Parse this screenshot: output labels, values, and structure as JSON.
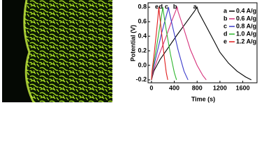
{
  "chart_data": {
    "type": "line",
    "x_label": "Time (s)",
    "y_label": "Potential (V)",
    "xlim": [
      -60,
      1850
    ],
    "ylim": [
      -0.24,
      0.86
    ],
    "xticks": [
      0,
      400,
      800,
      1200,
      1600
    ],
    "yticks": [
      -0.2,
      {
        "value": 0,
        "label": "0.0"
      },
      0.2,
      0.4,
      0.6,
      0.8
    ],
    "series": [
      {
        "letter": "a",
        "name": "0.4 A/g",
        "color": "#000000",
        "x": [
          0,
          40,
          150,
          300,
          450,
          600,
          750,
          800,
          820,
          950,
          1100,
          1200,
          1350,
          1500,
          1650,
          1750
        ],
        "values": [
          -0.2,
          -0.08,
          0.08,
          0.25,
          0.42,
          0.58,
          0.74,
          0.8,
          0.74,
          0.55,
          0.33,
          0.18,
          0.03,
          -0.08,
          -0.16,
          -0.2
        ]
      },
      {
        "letter": "b",
        "name": "0.6 A/g",
        "color": "#d6307a",
        "x": [
          0,
          30,
          120,
          250,
          350,
          450,
          465,
          560,
          680,
          800,
          900,
          960
        ],
        "values": [
          -0.2,
          -0.08,
          0.12,
          0.38,
          0.6,
          0.8,
          0.74,
          0.52,
          0.22,
          0.0,
          -0.14,
          -0.2
        ]
      },
      {
        "letter": "c",
        "name": "0.8 A/g",
        "color": "#3a3acb",
        "x": [
          0,
          20,
          90,
          180,
          300,
          310,
          380,
          470,
          570,
          640
        ],
        "values": [
          -0.2,
          -0.08,
          0.15,
          0.45,
          0.8,
          0.74,
          0.5,
          0.2,
          -0.08,
          -0.2
        ]
      },
      {
        "letter": "d",
        "name": "1.0 A/g",
        "color": "#2cb52c",
        "x": [
          0,
          15,
          70,
          140,
          200,
          208,
          260,
          330,
          400,
          440
        ],
        "values": [
          -0.2,
          -0.08,
          0.16,
          0.5,
          0.8,
          0.74,
          0.48,
          0.16,
          -0.1,
          -0.2
        ]
      },
      {
        "letter": "e",
        "name": "1.2 A/g",
        "color": "#e01c1c",
        "x": [
          0,
          10,
          50,
          95,
          130,
          136,
          175,
          220,
          260,
          285
        ],
        "values": [
          -0.2,
          -0.08,
          0.18,
          0.52,
          0.8,
          0.74,
          0.46,
          0.14,
          -0.1,
          -0.2
        ]
      }
    ]
  }
}
